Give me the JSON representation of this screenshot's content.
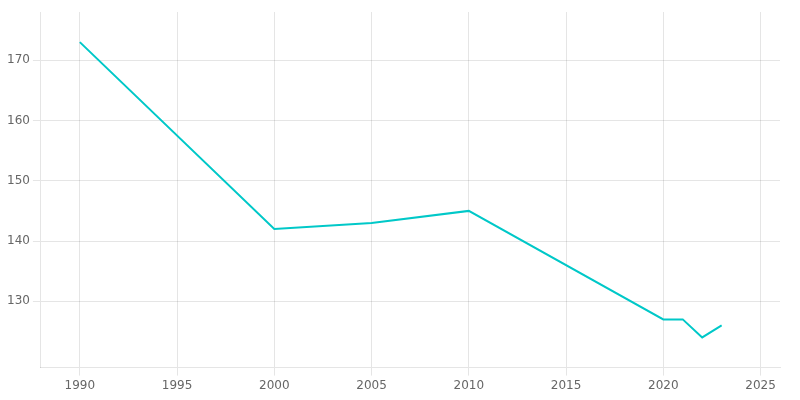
{
  "chart_data": {
    "type": "line",
    "x": [
      1990,
      2000,
      2005,
      2010,
      2020,
      2021,
      2022,
      2023
    ],
    "values": [
      173,
      142,
      143,
      145,
      127,
      127,
      124,
      126
    ],
    "color": "#00C8C8",
    "xlim": [
      1988,
      2026
    ],
    "ylim": [
      119,
      178
    ],
    "xticks": [
      1990,
      1995,
      2000,
      2005,
      2010,
      2015,
      2020,
      2025
    ],
    "yticks": [
      130,
      140,
      150,
      160,
      170
    ],
    "grid": true
  }
}
